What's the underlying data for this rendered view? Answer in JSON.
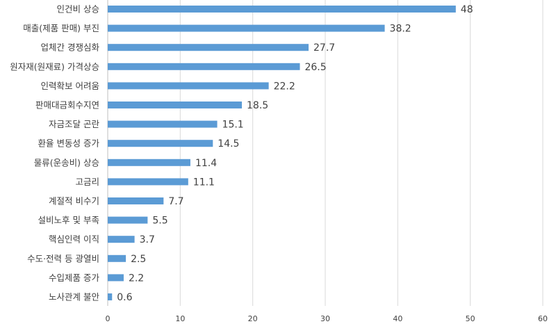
{
  "chart_data": {
    "type": "bar",
    "orientation": "horizontal",
    "title": "",
    "xlabel": "",
    "ylabel": "",
    "categories": [
      "인건비 상승",
      "매출(제품 판매) 부진",
      "업체간 경쟁심화",
      "원자재(원재료) 가격상승",
      "인력확보 어려움",
      "판매대금회수지연",
      "자금조달 곤란",
      "환율 변동성 증가",
      "물류(운송비) 상승",
      "고금리",
      "계절적 비수기",
      "설비노후 및 부족",
      "핵심인력 이직",
      "수도·전력 등 광열비",
      "수입제품 증가",
      "노사관계 불안"
    ],
    "values": [
      48,
      38.2,
      27.7,
      26.5,
      22.2,
      18.5,
      15.1,
      14.5,
      11.4,
      11.1,
      7.7,
      5.5,
      3.7,
      2.5,
      2.2,
      0.6
    ],
    "value_labels": [
      "48",
      "38.2",
      "27.7",
      "26.5",
      "22.2",
      "18.5",
      "15.1",
      "14.5",
      "11.4",
      "11.1",
      "7.7",
      "5.5",
      "3.7",
      "2.5",
      "2.2",
      "0.6"
    ],
    "xlim": [
      0,
      60
    ],
    "xticks": [
      "0",
      "10",
      "20",
      "30",
      "40",
      "50",
      "60"
    ],
    "grid": true,
    "bar_color": "#5b9bd5"
  }
}
